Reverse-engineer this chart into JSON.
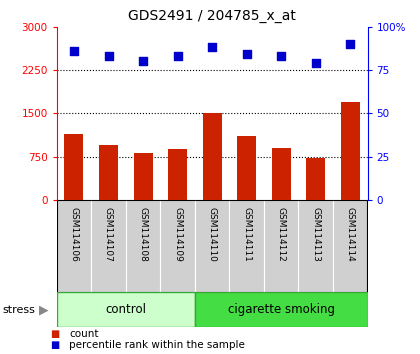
{
  "title": "GDS2491 / 204785_x_at",
  "samples": [
    "GSM114106",
    "GSM114107",
    "GSM114108",
    "GSM114109",
    "GSM114110",
    "GSM114111",
    "GSM114112",
    "GSM114113",
    "GSM114114"
  ],
  "counts": [
    1150,
    950,
    820,
    890,
    1500,
    1100,
    900,
    730,
    1700
  ],
  "percentile_ranks": [
    86,
    83,
    80,
    83,
    88,
    84,
    83,
    79,
    90
  ],
  "left_ylim": [
    0,
    3000
  ],
  "right_ylim": [
    0,
    100
  ],
  "left_yticks": [
    0,
    750,
    1500,
    2250,
    3000
  ],
  "right_yticks": [
    0,
    25,
    50,
    75,
    100
  ],
  "bar_color": "#cc2200",
  "dot_color": "#0000cc",
  "control_color": "#ccffcc",
  "smoking_color": "#44dd44",
  "control_label": "control",
  "smoking_label": "cigarette smoking",
  "stress_label": "stress",
  "n_control": 4,
  "n_smoking": 5,
  "legend_count_color": "#cc2200",
  "legend_pct_color": "#0000cc",
  "bar_width": 0.55,
  "tick_label_area_color": "#d0d0d0"
}
